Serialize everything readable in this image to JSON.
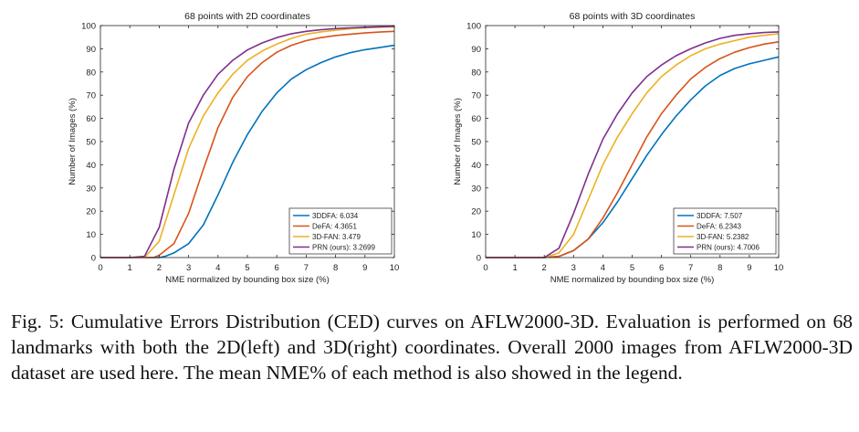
{
  "caption": "Fig. 5: Cumulative Errors Distribution (CED) curves on AFLW2000-3D. Evaluation is performed on 68 landmarks with both the 2D(left) and 3D(right) coordinates. Overall 2000 images from AFLW2000-3D dataset are used here. The mean NME% of each method is also showed in the legend.",
  "colors": {
    "3DDFA": "#0072BD",
    "DeFA": "#D95319",
    "3D-FAN": "#EDB120",
    "PRN": "#7E2F8E"
  },
  "chart_data": [
    {
      "type": "line",
      "title": "68 points with 2D coordinates",
      "xlabel": "NME normalized by bounding box size (%)",
      "ylabel": "Number of Images (%)",
      "xlim": [
        0,
        10
      ],
      "ylim": [
        0,
        100
      ],
      "xticks": [
        0,
        1,
        2,
        3,
        4,
        5,
        6,
        7,
        8,
        9,
        10
      ],
      "yticks": [
        0,
        10,
        20,
        30,
        40,
        50,
        60,
        70,
        80,
        90,
        100
      ],
      "grid": false,
      "legend_position": "bottom-right",
      "series": [
        {
          "name": "3DDFA: 6.034",
          "color": "#0072BD",
          "x": [
            0,
            1,
            2,
            2.2,
            2.5,
            3,
            3.5,
            4,
            4.5,
            5,
            5.5,
            6,
            6.5,
            7,
            7.5,
            8,
            8.5,
            9,
            9.5,
            10
          ],
          "y": [
            0,
            0,
            0,
            0.5,
            2,
            6,
            14,
            27,
            41,
            53,
            63,
            71,
            77,
            81,
            84,
            86.5,
            88.3,
            89.6,
            90.5,
            91.5
          ]
        },
        {
          "name": "DeFA: 4.3651",
          "color": "#D95319",
          "x": [
            0,
            1,
            1.8,
            2,
            2.5,
            3,
            3.5,
            4,
            4.5,
            5,
            5.5,
            6,
            6.5,
            7,
            7.5,
            8,
            8.5,
            9,
            9.5,
            10
          ],
          "y": [
            0,
            0,
            0,
            1,
            6,
            19,
            38,
            56,
            69,
            78,
            84,
            88.5,
            91.5,
            93.5,
            94.8,
            95.7,
            96.3,
            96.8,
            97.2,
            97.5
          ]
        },
        {
          "name": "3D-FAN: 3.479",
          "color": "#EDB120",
          "x": [
            0,
            1,
            1.5,
            2,
            2.5,
            3,
            3.5,
            4,
            4.5,
            5,
            5.5,
            6,
            6.5,
            7,
            7.5,
            8,
            8.5,
            9,
            9.5,
            10
          ],
          "y": [
            0,
            0,
            0,
            7,
            27,
            47,
            61,
            71,
            79,
            85,
            89,
            92,
            94.5,
            96.3,
            97.3,
            98,
            98.6,
            99,
            99.3,
            99.5
          ]
        },
        {
          "name": "PRN (ours): 3.2699",
          "color": "#7E2F8E",
          "x": [
            0,
            1,
            1.5,
            2,
            2.5,
            3,
            3.5,
            4,
            4.5,
            5,
            5.5,
            6,
            6.5,
            7,
            7.5,
            8,
            8.5,
            9,
            9.5,
            10
          ],
          "y": [
            0,
            0,
            0.5,
            13,
            38,
            58,
            70,
            79,
            85,
            89.5,
            92.5,
            94.8,
            96.5,
            97.5,
            98.2,
            98.7,
            99,
            99.3,
            99.5,
            99.7
          ]
        }
      ]
    },
    {
      "type": "line",
      "title": "68 points with 3D coordinates",
      "xlabel": "NME normalized by bounding box size (%)",
      "ylabel": "Number of Images (%)",
      "xlim": [
        0,
        10
      ],
      "ylim": [
        0,
        100
      ],
      "xticks": [
        0,
        1,
        2,
        3,
        4,
        5,
        6,
        7,
        8,
        9,
        10
      ],
      "yticks": [
        0,
        10,
        20,
        30,
        40,
        50,
        60,
        70,
        80,
        90,
        100
      ],
      "grid": false,
      "legend_position": "bottom-right",
      "series": [
        {
          "name": "3DDFA: 7.507",
          "color": "#0072BD",
          "x": [
            0,
            2,
            2.5,
            3,
            3.5,
            4,
            4.5,
            5,
            5.5,
            6,
            6.5,
            7,
            7.5,
            8,
            8.5,
            9,
            9.5,
            10
          ],
          "y": [
            0,
            0,
            0.5,
            3,
            8,
            15,
            24,
            34,
            44,
            53,
            61,
            68,
            74,
            78.5,
            81.5,
            83.5,
            85,
            86.5
          ]
        },
        {
          "name": "DeFA: 6.2343",
          "color": "#D95319",
          "x": [
            0,
            2,
            2.5,
            3,
            3.5,
            4,
            4.5,
            5,
            5.5,
            6,
            6.5,
            7,
            7.5,
            8,
            8.5,
            9,
            9.5,
            10
          ],
          "y": [
            0,
            0,
            0.5,
            3,
            8,
            17,
            28,
            40,
            52,
            62,
            70,
            77,
            82,
            85.8,
            88.5,
            90.5,
            92,
            93
          ]
        },
        {
          "name": "3D-FAN: 5.2382",
          "color": "#EDB120",
          "x": [
            0,
            2,
            2.5,
            3,
            3.5,
            4,
            4.5,
            5,
            5.5,
            6,
            6.5,
            7,
            7.5,
            8,
            8.5,
            9,
            9.5,
            10
          ],
          "y": [
            0,
            0,
            2,
            10,
            25,
            40,
            52,
            62,
            71,
            78,
            83,
            87,
            90,
            92,
            93.5,
            95,
            95.8,
            96.5
          ]
        },
        {
          "name": "PRN (ours): 4.7006",
          "color": "#7E2F8E",
          "x": [
            0,
            2,
            2.5,
            3,
            3.5,
            4,
            4.5,
            5,
            5.5,
            6,
            6.5,
            7,
            7.5,
            8,
            8.5,
            9,
            9.5,
            10
          ],
          "y": [
            0,
            0,
            4,
            19,
            36,
            51,
            62,
            71,
            78,
            83,
            87,
            90,
            92.5,
            94.5,
            95.8,
            96.5,
            97,
            97.3
          ]
        }
      ]
    }
  ]
}
